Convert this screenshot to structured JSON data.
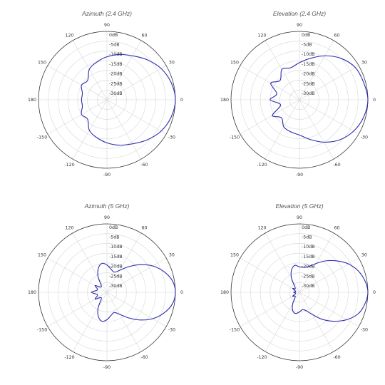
{
  "chart_data": [
    {
      "type": "polar-line",
      "title": "Azimuth (2.4 GHz)",
      "angle_tick_labels": [
        "0",
        "30",
        "60",
        "90",
        "120",
        "150",
        "180",
        "-150",
        "-120",
        "-90",
        "-60",
        "-30"
      ],
      "radial_tick_labels": [
        "0dB",
        "-5dB",
        "-10dB",
        "-15dB",
        "-20dB",
        "-25dB",
        "-30dB"
      ],
      "rlim_dB": [
        -35,
        0
      ],
      "grid": true,
      "series": [
        {
          "color": "#2b2bb0",
          "angles_deg": [
            0,
            15,
            30,
            45,
            60,
            75,
            90,
            105,
            120,
            135,
            150,
            165,
            180,
            195,
            210,
            225,
            240,
            255,
            270,
            285,
            300,
            315,
            330,
            345
          ],
          "values_dB": [
            0,
            -1,
            -3,
            -6,
            -9,
            -11,
            -13,
            -15,
            -17,
            -21,
            -20,
            -22,
            -22,
            -22,
            -20,
            -21,
            -17,
            -15,
            -13,
            -11,
            -9,
            -6,
            -3,
            -1
          ]
        }
      ]
    },
    {
      "type": "polar-line",
      "title": "Elevation (2.4 GHz)",
      "angle_tick_labels": [
        "0",
        "30",
        "60",
        "90",
        "120",
        "150",
        "180",
        "-150",
        "-120",
        "-90",
        "-60",
        "-30"
      ],
      "radial_tick_labels": [
        "0dB",
        "-5dB",
        "-10dB",
        "-15dB",
        "-20dB",
        "-25dB",
        "-30dB"
      ],
      "rlim_dB": [
        -35,
        0
      ],
      "grid": true,
      "series": [
        {
          "color": "#2b2bb0",
          "angles_deg": [
            0,
            15,
            30,
            45,
            60,
            75,
            90,
            105,
            120,
            135,
            150,
            165,
            180,
            195,
            210,
            225,
            240,
            255,
            270,
            285,
            300,
            315,
            330,
            345
          ],
          "values_dB": [
            0,
            -1,
            -2,
            -5,
            -9,
            -13,
            -16,
            -18,
            -17,
            -21,
            -18,
            -23,
            -20,
            -25,
            -19,
            -22,
            -19,
            -18,
            -17,
            -14,
            -10,
            -6,
            -3,
            -1
          ]
        }
      ]
    },
    {
      "type": "polar-line",
      "title": "Azimuth (5 GHz)",
      "angle_tick_labels": [
        "0",
        "30",
        "60",
        "90",
        "120",
        "150",
        "180",
        "-150",
        "-120",
        "-90",
        "-60",
        "-30"
      ],
      "radial_tick_labels": [
        "0dB",
        "-5dB",
        "-10dB",
        "-15dB",
        "-20dB",
        "-25dB",
        "-30dB"
      ],
      "rlim_dB": [
        -35,
        0
      ],
      "grid": true,
      "series": [
        {
          "color": "#2b2bb0",
          "angles_deg": [
            0,
            10,
            20,
            30,
            40,
            50,
            60,
            70,
            80,
            90,
            100,
            110,
            120,
            135,
            150,
            165,
            180,
            195,
            210,
            225,
            240,
            250,
            260,
            270,
            280,
            290,
            300,
            310,
            320,
            330,
            340,
            350
          ],
          "values_dB": [
            0,
            -1,
            -4,
            -8,
            -13,
            -18,
            -22,
            -24,
            -23,
            -21,
            -20,
            -22,
            -26,
            -31,
            -28,
            -30,
            -27,
            -30,
            -28,
            -31,
            -26,
            -22,
            -20,
            -21,
            -23,
            -24,
            -22,
            -18,
            -13,
            -8,
            -4,
            -1
          ]
        }
      ]
    },
    {
      "type": "polar-line",
      "title": "Elevation (5 GHz)",
      "angle_tick_labels": [
        "0",
        "30",
        "60",
        "90",
        "120",
        "150",
        "180",
        "-150",
        "-120",
        "-90",
        "-60",
        "-30"
      ],
      "radial_tick_labels": [
        "0dB",
        "-5dB",
        "-10dB",
        "-15dB",
        "-20dB",
        "-25dB",
        "-30dB"
      ],
      "rlim_dB": [
        -35,
        0
      ],
      "grid": true,
      "series": [
        {
          "color": "#2b2bb0",
          "angles_deg": [
            0,
            10,
            20,
            30,
            40,
            50,
            60,
            70,
            80,
            90,
            100,
            110,
            120,
            135,
            150,
            165,
            180,
            195,
            210,
            225,
            240,
            250,
            260,
            270,
            280,
            290,
            300,
            310,
            320,
            330,
            340,
            350
          ],
          "values_dB": [
            0,
            -1,
            -3,
            -6,
            -10,
            -14,
            -18,
            -21,
            -22,
            -22,
            -21,
            -23,
            -27,
            -32,
            -31,
            -33,
            -32,
            -33,
            -31,
            -32,
            -28,
            -25,
            -24,
            -25,
            -26,
            -25,
            -22,
            -17,
            -12,
            -7,
            -3,
            -1
          ]
        }
      ]
    }
  ]
}
